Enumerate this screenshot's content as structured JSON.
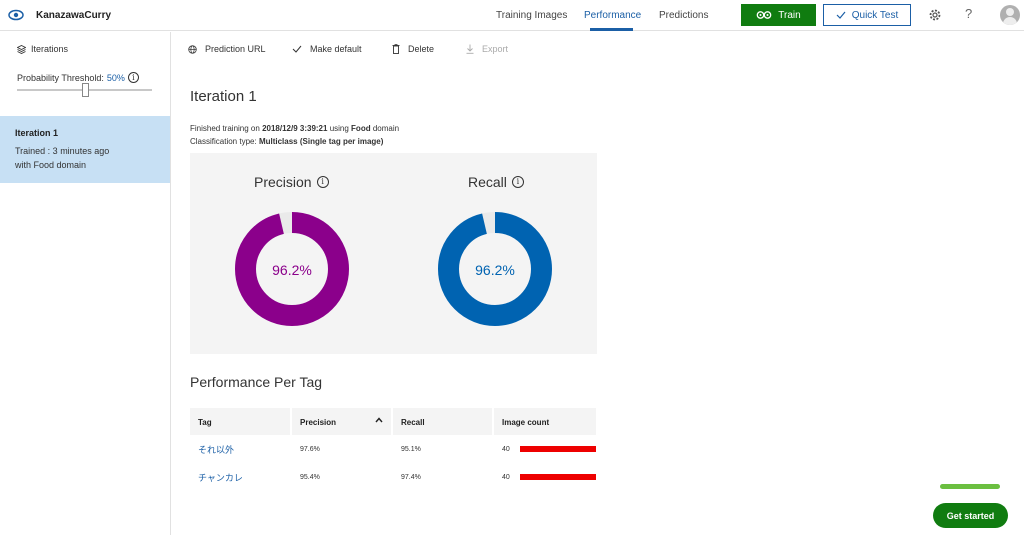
{
  "app": {
    "title": "KanazawaCurry"
  },
  "nav": {
    "tabs": [
      {
        "label": "Training Images"
      },
      {
        "label": "Performance"
      },
      {
        "label": "Predictions"
      }
    ],
    "train_label": "Train",
    "quick_test_label": "Quick Test",
    "help_glyph": "?"
  },
  "sidebar": {
    "iterations_label": "Iterations",
    "threshold_label": "Probability Threshold:",
    "threshold_value": "50%",
    "threshold_level": 0.5,
    "iteration": {
      "title": "Iteration 1",
      "trained": "Trained : 3 minutes ago",
      "domain": "with Food domain"
    }
  },
  "toolbar": {
    "prediction_url": "Prediction URL",
    "make_default": "Make default",
    "delete": "Delete",
    "export": "Export"
  },
  "main": {
    "title": "Iteration 1",
    "finished_prefix": "Finished training on",
    "finished_date": "2018/12/9 3:39:21",
    "using": "using",
    "domain": "Food",
    "domain_suffix": "domain",
    "class_type_prefix": "Classification type:",
    "class_type": "Multiclass (Single tag per image)"
  },
  "metrics": {
    "precision": {
      "label": "Precision",
      "value": "96.2%",
      "fraction": 0.962,
      "color": "#8b008b"
    },
    "recall": {
      "label": "Recall",
      "value": "96.2%",
      "fraction": 0.962,
      "color": "#0063b1"
    }
  },
  "per_tag": {
    "title": "Performance Per Tag",
    "headers": {
      "tag": "Tag",
      "precision": "Precision",
      "recall": "Recall",
      "image_count": "Image count"
    },
    "rows": [
      {
        "tag": "それ以外",
        "precision": "97.6%",
        "recall": "95.1%",
        "count": "40"
      },
      {
        "tag": "チャンカレ",
        "precision": "95.4%",
        "recall": "97.4%",
        "count": "40"
      }
    ]
  },
  "get_started_label": "Get started",
  "colors": {
    "accent": "#1b5fa6",
    "green": "#107c10",
    "bar": "#ee0000"
  }
}
